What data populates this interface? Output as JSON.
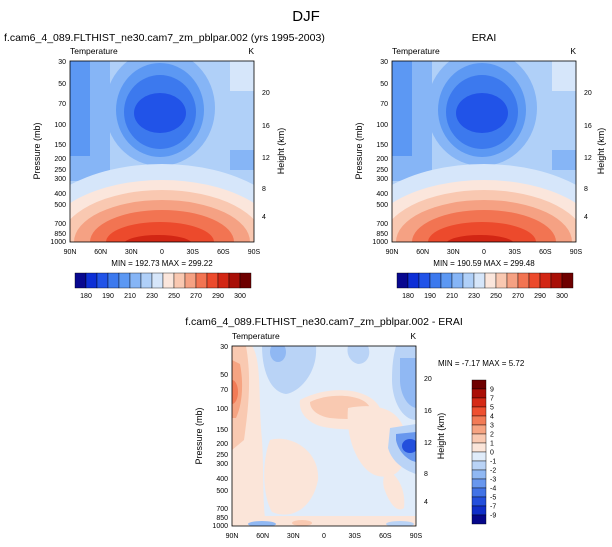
{
  "figure": {
    "suptitle": "DJF"
  },
  "chart_data": [
    {
      "type": "heatmap",
      "title": "f.cam6_4_089.FLTHIST_ne30.cam7_zm_pblpar.002 (yrs 1995-2003)",
      "left_label": "Temperature",
      "right_label": "K",
      "xlabel": "",
      "ylabel": "Pressure (mb)",
      "y2label": "Height (km)",
      "x_ticks": [
        "90N",
        "60N",
        "30N",
        "0",
        "30S",
        "60S",
        "90S"
      ],
      "y_ticks": [
        "30",
        "50",
        "70",
        "100",
        "150",
        "200",
        "250",
        "300",
        "400",
        "500",
        "700",
        "850",
        "1000"
      ],
      "y2_ticks": [
        "20",
        "16",
        "12",
        "8",
        "4"
      ],
      "stats": "MIN = 192.73   MAX = 299.22",
      "colorbar_labels": [
        "180",
        "190",
        "210",
        "230",
        "250",
        "270",
        "290",
        "300"
      ]
    },
    {
      "type": "heatmap",
      "title": "ERAI",
      "left_label": "Temperature",
      "right_label": "K",
      "xlabel": "",
      "ylabel": "Pressure (mb)",
      "y2label": "Height (km)",
      "x_ticks": [
        "90N",
        "60N",
        "30N",
        "0",
        "30S",
        "60S",
        "90S"
      ],
      "y_ticks": [
        "30",
        "50",
        "70",
        "100",
        "150",
        "200",
        "250",
        "300",
        "400",
        "500",
        "700",
        "850",
        "1000"
      ],
      "y2_ticks": [
        "20",
        "16",
        "12",
        "8",
        "4"
      ],
      "stats": "MIN = 190.59   MAX = 299.48",
      "colorbar_labels": [
        "180",
        "190",
        "210",
        "230",
        "250",
        "270",
        "290",
        "300"
      ]
    },
    {
      "type": "heatmap",
      "title": "f.cam6_4_089.FLTHIST_ne30.cam7_zm_pblpar.002 - ERAI",
      "left_label": "Temperature",
      "right_label": "K",
      "xlabel": "",
      "ylabel": "Pressure (mb)",
      "y2label": "Height (km)",
      "x_ticks": [
        "90N",
        "60N",
        "30N",
        "0",
        "30S",
        "60S",
        "90S"
      ],
      "y_ticks": [
        "30",
        "50",
        "70",
        "100",
        "150",
        "200",
        "250",
        "300",
        "400",
        "500",
        "700",
        "850",
        "1000"
      ],
      "y2_ticks": [
        "20",
        "16",
        "12",
        "8",
        "4"
      ],
      "stats": "MIN = -7.17  MAX =   5.72",
      "colorbar_labels": [
        "9",
        "7",
        "5",
        "4",
        "3",
        "2",
        "1",
        "0",
        "-1",
        "-2",
        "-3",
        "-4",
        "-5",
        "-7",
        "-9"
      ]
    }
  ],
  "colors": {
    "abs_scale": [
      "#08088f",
      "#0d2fd6",
      "#2153e8",
      "#3c79ee",
      "#5c98f3",
      "#86b5f6",
      "#b0d0f8",
      "#d6e6fa",
      "#fbe6dc",
      "#f9c8b1",
      "#f5a183",
      "#f27452",
      "#ec4a2c",
      "#d22614",
      "#a80f07",
      "#6e0000"
    ],
    "diff_scale": [
      "#6e0000",
      "#aa0f07",
      "#d52a16",
      "#ee5030",
      "#f27b56",
      "#f6a482",
      "#f9c9b1",
      "#fbe5d9",
      "#e0ecfa",
      "#b9d3f6",
      "#90b8f3",
      "#6897ee",
      "#4273e6",
      "#234fdc",
      "#0f2ec8",
      "#06078a"
    ]
  }
}
